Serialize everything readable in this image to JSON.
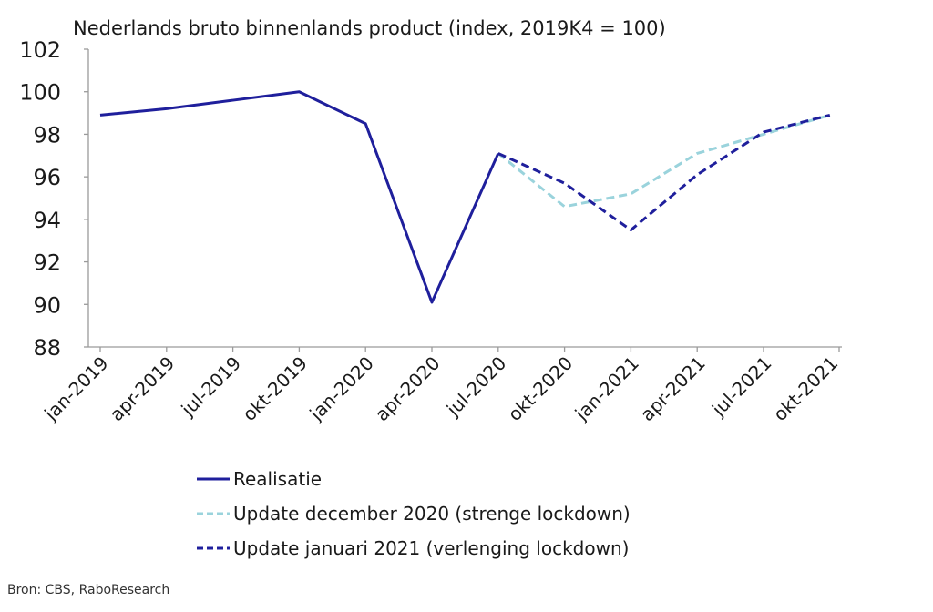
{
  "chart_data": {
    "type": "line",
    "title": "Nederlands bruto binnenlands product (index, 2019K4 = 100)",
    "xlabel": "",
    "ylabel": "",
    "ylim": [
      88,
      102
    ],
    "yticks": [
      88,
      90,
      92,
      94,
      96,
      98,
      100,
      102
    ],
    "categories": [
      "jan-2019",
      "apr-2019",
      "jul-2019",
      "okt-2019",
      "jan-2020",
      "apr-2020",
      "jul-2020",
      "okt-2020",
      "jan-2021",
      "apr-2021",
      "jul-2021",
      "okt-2021"
    ],
    "grid": false,
    "legend_position": "bottom",
    "series": [
      {
        "name": "Realisatie",
        "color": "#1f1f9c",
        "style": "solid",
        "values": [
          98.9,
          99.2,
          99.6,
          100.0,
          98.5,
          90.1,
          97.1,
          null,
          null,
          null,
          null,
          null
        ]
      },
      {
        "name": "Update december 2020 (strenge lockdown)",
        "color": "#9ad3dc",
        "style": "dashed",
        "values": [
          null,
          null,
          null,
          null,
          null,
          null,
          97.1,
          94.6,
          95.2,
          97.1,
          98.0,
          98.9
        ]
      },
      {
        "name": "Update januari 2021 (verlenging lockdown)",
        "color": "#1f1f9c",
        "style": "dashed",
        "values": [
          null,
          null,
          null,
          null,
          null,
          null,
          97.1,
          95.7,
          93.5,
          96.1,
          98.1,
          98.9
        ]
      }
    ]
  },
  "source": "Bron: CBS, RaboResearch"
}
